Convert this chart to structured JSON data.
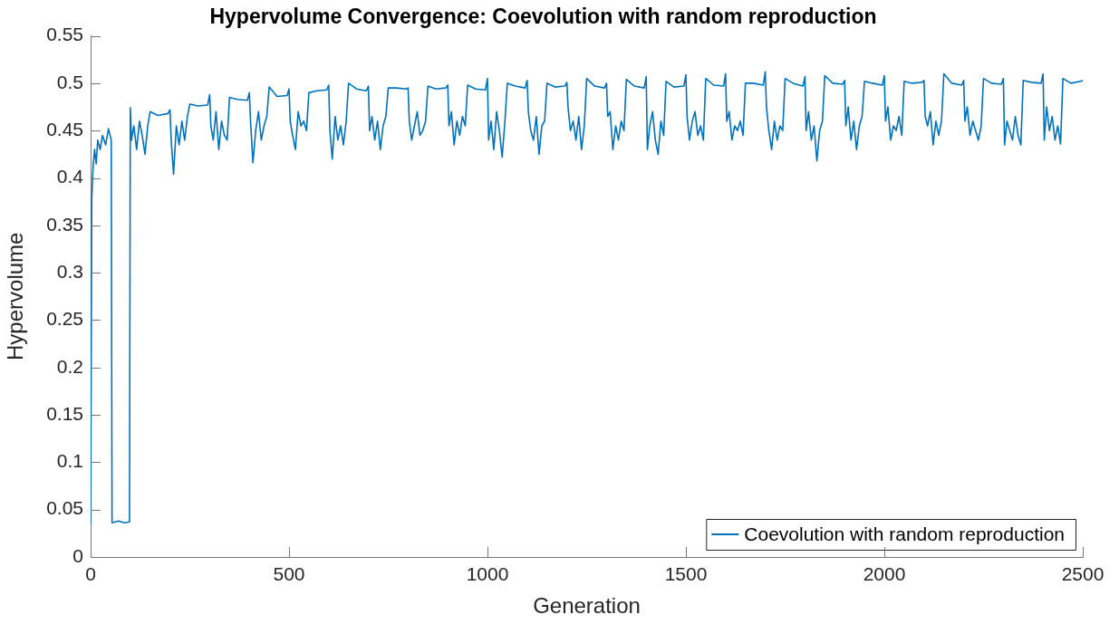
{
  "chart_data": {
    "type": "line",
    "title": "Hypervolume Convergence: Coevolution with random reproduction",
    "xlabel": "Generation",
    "ylabel": "Hypervolume",
    "xlim": [
      0,
      2500
    ],
    "xticks": [
      0,
      500,
      1000,
      1500,
      2000,
      2500
    ],
    "ylim": [
      0,
      0.55
    ],
    "yticks": [
      0,
      0.05,
      0.1,
      0.15,
      0.2,
      0.25,
      0.3,
      0.35,
      0.4,
      0.45,
      0.5,
      0.55
    ],
    "grid": false,
    "legend": "bottom right",
    "marker": "none",
    "line_style": "solid",
    "series": [
      {
        "name": "Coevolution with random reproduction",
        "color": "#0072bd",
        "x": [
          0,
          3,
          6,
          10,
          14,
          18,
          24,
          30,
          38,
          45,
          52,
          54,
          70,
          85,
          98,
          100,
          103,
          109,
          116,
          123,
          130,
          137,
          144,
          150,
          170,
          195,
          200,
          203,
          209,
          216,
          223,
          230,
          237,
          244,
          250,
          270,
          295,
          300,
          303,
          309,
          316,
          323,
          330,
          337,
          344,
          350,
          370,
          395,
          400,
          403,
          409,
          416,
          423,
          430,
          437,
          444,
          450,
          470,
          495,
          500,
          503,
          509,
          516,
          523,
          530,
          537,
          544,
          550,
          570,
          595,
          600,
          603,
          609,
          616,
          623,
          630,
          637,
          644,
          650,
          670,
          695,
          700,
          703,
          709,
          716,
          723,
          730,
          737,
          744,
          750,
          770,
          795,
          800,
          803,
          809,
          816,
          823,
          830,
          837,
          844,
          850,
          870,
          895,
          900,
          903,
          909,
          916,
          923,
          930,
          937,
          944,
          950,
          970,
          995,
          1000,
          1003,
          1009,
          1016,
          1023,
          1030,
          1037,
          1044,
          1050,
          1070,
          1095,
          1100,
          1103,
          1109,
          1116,
          1123,
          1130,
          1137,
          1144,
          1150,
          1170,
          1195,
          1200,
          1203,
          1209,
          1216,
          1223,
          1230,
          1237,
          1244,
          1250,
          1270,
          1295,
          1300,
          1303,
          1309,
          1316,
          1323,
          1330,
          1337,
          1344,
          1350,
          1370,
          1395,
          1400,
          1403,
          1409,
          1416,
          1423,
          1430,
          1437,
          1444,
          1450,
          1470,
          1495,
          1500,
          1503,
          1509,
          1516,
          1523,
          1530,
          1537,
          1544,
          1550,
          1570,
          1595,
          1600,
          1603,
          1609,
          1616,
          1623,
          1630,
          1637,
          1644,
          1650,
          1670,
          1695,
          1700,
          1703,
          1709,
          1716,
          1723,
          1730,
          1737,
          1744,
          1750,
          1770,
          1795,
          1800,
          1803,
          1809,
          1816,
          1823,
          1830,
          1837,
          1844,
          1850,
          1870,
          1895,
          1900,
          1903,
          1909,
          1916,
          1923,
          1930,
          1937,
          1944,
          1950,
          1970,
          1995,
          2000,
          2003,
          2009,
          2016,
          2023,
          2030,
          2037,
          2044,
          2050,
          2070,
          2095,
          2100,
          2103,
          2109,
          2116,
          2123,
          2130,
          2137,
          2144,
          2150,
          2170,
          2195,
          2200,
          2203,
          2209,
          2216,
          2223,
          2230,
          2237,
          2244,
          2250,
          2270,
          2295,
          2300,
          2303,
          2309,
          2316,
          2323,
          2330,
          2337,
          2344,
          2350,
          2370,
          2395,
          2400,
          2403,
          2409,
          2416,
          2423,
          2430,
          2437,
          2444,
          2450,
          2470,
          2495,
          2500
        ],
        "values": [
          0.035,
          0.38,
          0.41,
          0.43,
          0.415,
          0.44,
          0.43,
          0.445,
          0.435,
          0.452,
          0.44,
          0.036,
          0.038,
          0.036,
          0.037,
          0.474,
          0.44,
          0.455,
          0.43,
          0.46,
          0.445,
          0.425,
          0.455,
          0.47,
          0.466,
          0.468,
          0.472,
          0.44,
          0.404,
          0.455,
          0.435,
          0.46,
          0.44,
          0.465,
          0.478,
          0.476,
          0.477,
          0.488,
          0.455,
          0.44,
          0.47,
          0.43,
          0.46,
          0.445,
          0.44,
          0.485,
          0.483,
          0.482,
          0.49,
          0.46,
          0.416,
          0.45,
          0.47,
          0.44,
          0.455,
          0.465,
          0.496,
          0.486,
          0.487,
          0.494,
          0.46,
          0.445,
          0.43,
          0.47,
          0.455,
          0.46,
          0.45,
          0.49,
          0.492,
          0.493,
          0.498,
          0.45,
          0.42,
          0.465,
          0.44,
          0.455,
          0.435,
          0.46,
          0.5,
          0.494,
          0.492,
          0.497,
          0.45,
          0.465,
          0.44,
          0.46,
          0.43,
          0.455,
          0.465,
          0.495,
          0.495,
          0.494,
          0.495,
          0.46,
          0.44,
          0.455,
          0.47,
          0.445,
          0.45,
          0.46,
          0.497,
          0.494,
          0.495,
          0.498,
          0.455,
          0.47,
          0.435,
          0.46,
          0.445,
          0.465,
          0.455,
          0.498,
          0.494,
          0.493,
          0.505,
          0.44,
          0.46,
          0.43,
          0.47,
          0.45,
          0.422,
          0.46,
          0.5,
          0.497,
          0.495,
          0.503,
          0.47,
          0.45,
          0.44,
          0.465,
          0.425,
          0.455,
          0.46,
          0.5,
          0.496,
          0.497,
          0.501,
          0.475,
          0.45,
          0.46,
          0.44,
          0.465,
          0.43,
          0.455,
          0.505,
          0.497,
          0.495,
          0.5,
          0.465,
          0.47,
          0.43,
          0.455,
          0.44,
          0.46,
          0.45,
          0.504,
          0.497,
          0.495,
          0.507,
          0.43,
          0.455,
          0.47,
          0.44,
          0.425,
          0.46,
          0.445,
          0.502,
          0.496,
          0.497,
          0.509,
          0.465,
          0.44,
          0.46,
          0.47,
          0.445,
          0.455,
          0.44,
          0.505,
          0.498,
          0.497,
          0.51,
          0.46,
          0.47,
          0.44,
          0.455,
          0.45,
          0.46,
          0.445,
          0.5,
          0.5,
          0.498,
          0.512,
          0.475,
          0.45,
          0.43,
          0.46,
          0.44,
          0.455,
          0.45,
          0.505,
          0.5,
          0.497,
          0.507,
          0.45,
          0.47,
          0.44,
          0.455,
          0.418,
          0.45,
          0.46,
          0.508,
          0.5,
          0.499,
          0.503,
          0.455,
          0.475,
          0.44,
          0.46,
          0.43,
          0.455,
          0.465,
          0.502,
          0.5,
          0.498,
          0.508,
          0.46,
          0.475,
          0.44,
          0.455,
          0.45,
          0.465,
          0.445,
          0.502,
          0.5,
          0.501,
          0.503,
          0.465,
          0.455,
          0.47,
          0.435,
          0.46,
          0.445,
          0.46,
          0.51,
          0.5,
          0.498,
          0.503,
          0.46,
          0.475,
          0.445,
          0.46,
          0.45,
          0.44,
          0.455,
          0.505,
          0.5,
          0.499,
          0.505,
          0.435,
          0.46,
          0.45,
          0.44,
          0.465,
          0.445,
          0.435,
          0.503,
          0.501,
          0.5,
          0.51,
          0.44,
          0.475,
          0.45,
          0.465,
          0.44,
          0.455,
          0.436,
          0.505,
          0.5,
          0.502,
          0.503
        ]
      }
    ]
  }
}
